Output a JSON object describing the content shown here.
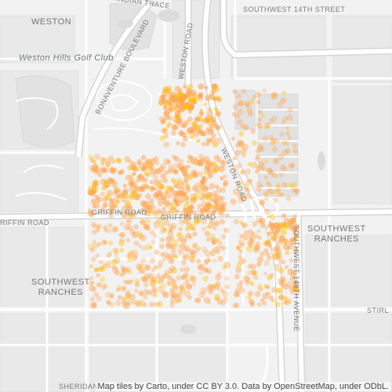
{
  "map": {
    "place_labels": {
      "weston": "WESTON",
      "southwest_ranches_left_1": "SOUTHWEST",
      "southwest_ranches_left_2": "RANCHES",
      "southwest_ranches_right_1": "SOUTHWEST",
      "southwest_ranches_right_2": "RANCHES"
    },
    "poi_labels": {
      "golf_club": "Weston Hills Golf Club"
    },
    "road_labels": {
      "indian_trace": "INDIAN TRACE",
      "southwest_14th_street": "SOUTHWEST 14TH STREET",
      "bonaventure_boulevard": "BONAVENTURE BOULEVARD",
      "weston_road_north": "WESTON ROAD",
      "weston_road_south": "WESTON ROAD",
      "griffin_road_left": "GRIFFIN ROAD",
      "griffin_road_mid": "GRIFFIN ROAD",
      "griffin_road_far_left": "RIFFIN ROAD",
      "southwest_148th_avenue": "SOUTHWEST 148TH AVENUE",
      "stirling": "STIRL",
      "sheridan": "SHERIDAN"
    },
    "attribution": "Map tiles by Carto, under CC BY 3.0. Data by OpenStreetMap, under ODbL.",
    "colors": {
      "background": "#f2f2f2",
      "road": "#ffffff",
      "road_casing": "#d9d9d9",
      "block": "#e6e6e6",
      "dot_fill": "#ffa54f",
      "dot_dense": "#ffc000"
    }
  }
}
